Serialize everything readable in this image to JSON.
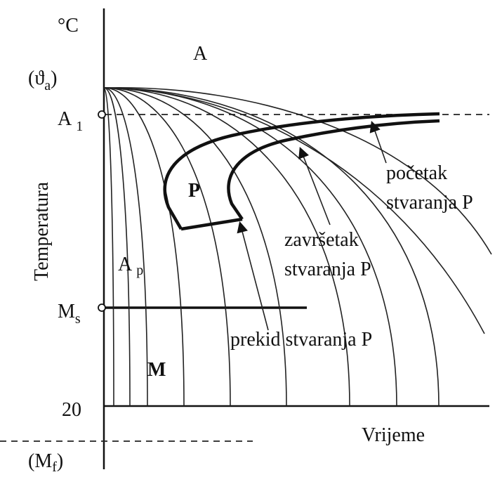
{
  "diagram": {
    "unit": "°C",
    "y_axis_label": "Temperatura",
    "x_axis_label": "Vrijeme",
    "levels": {
      "theta_a": {
        "open": "(",
        "base": "ϑ",
        "sub": "a",
        "close": ")"
      },
      "a1": {
        "base": "A",
        "sub": "1"
      },
      "ms": {
        "base": "M",
        "sub": "s"
      },
      "room": "20",
      "mf": {
        "open": "(",
        "base": "M",
        "sub": "f",
        "close": ")"
      }
    },
    "regions": {
      "austenite": "A",
      "pearlite": "P",
      "austenite_p": {
        "base": "A",
        "sub": "p"
      },
      "martensite": "M"
    },
    "annotations": {
      "start": [
        "početak",
        "stvaranja P"
      ],
      "finish": [
        "završetak",
        "stvaranja P"
      ],
      "interrupt": "prekid stvaranja P"
    }
  }
}
